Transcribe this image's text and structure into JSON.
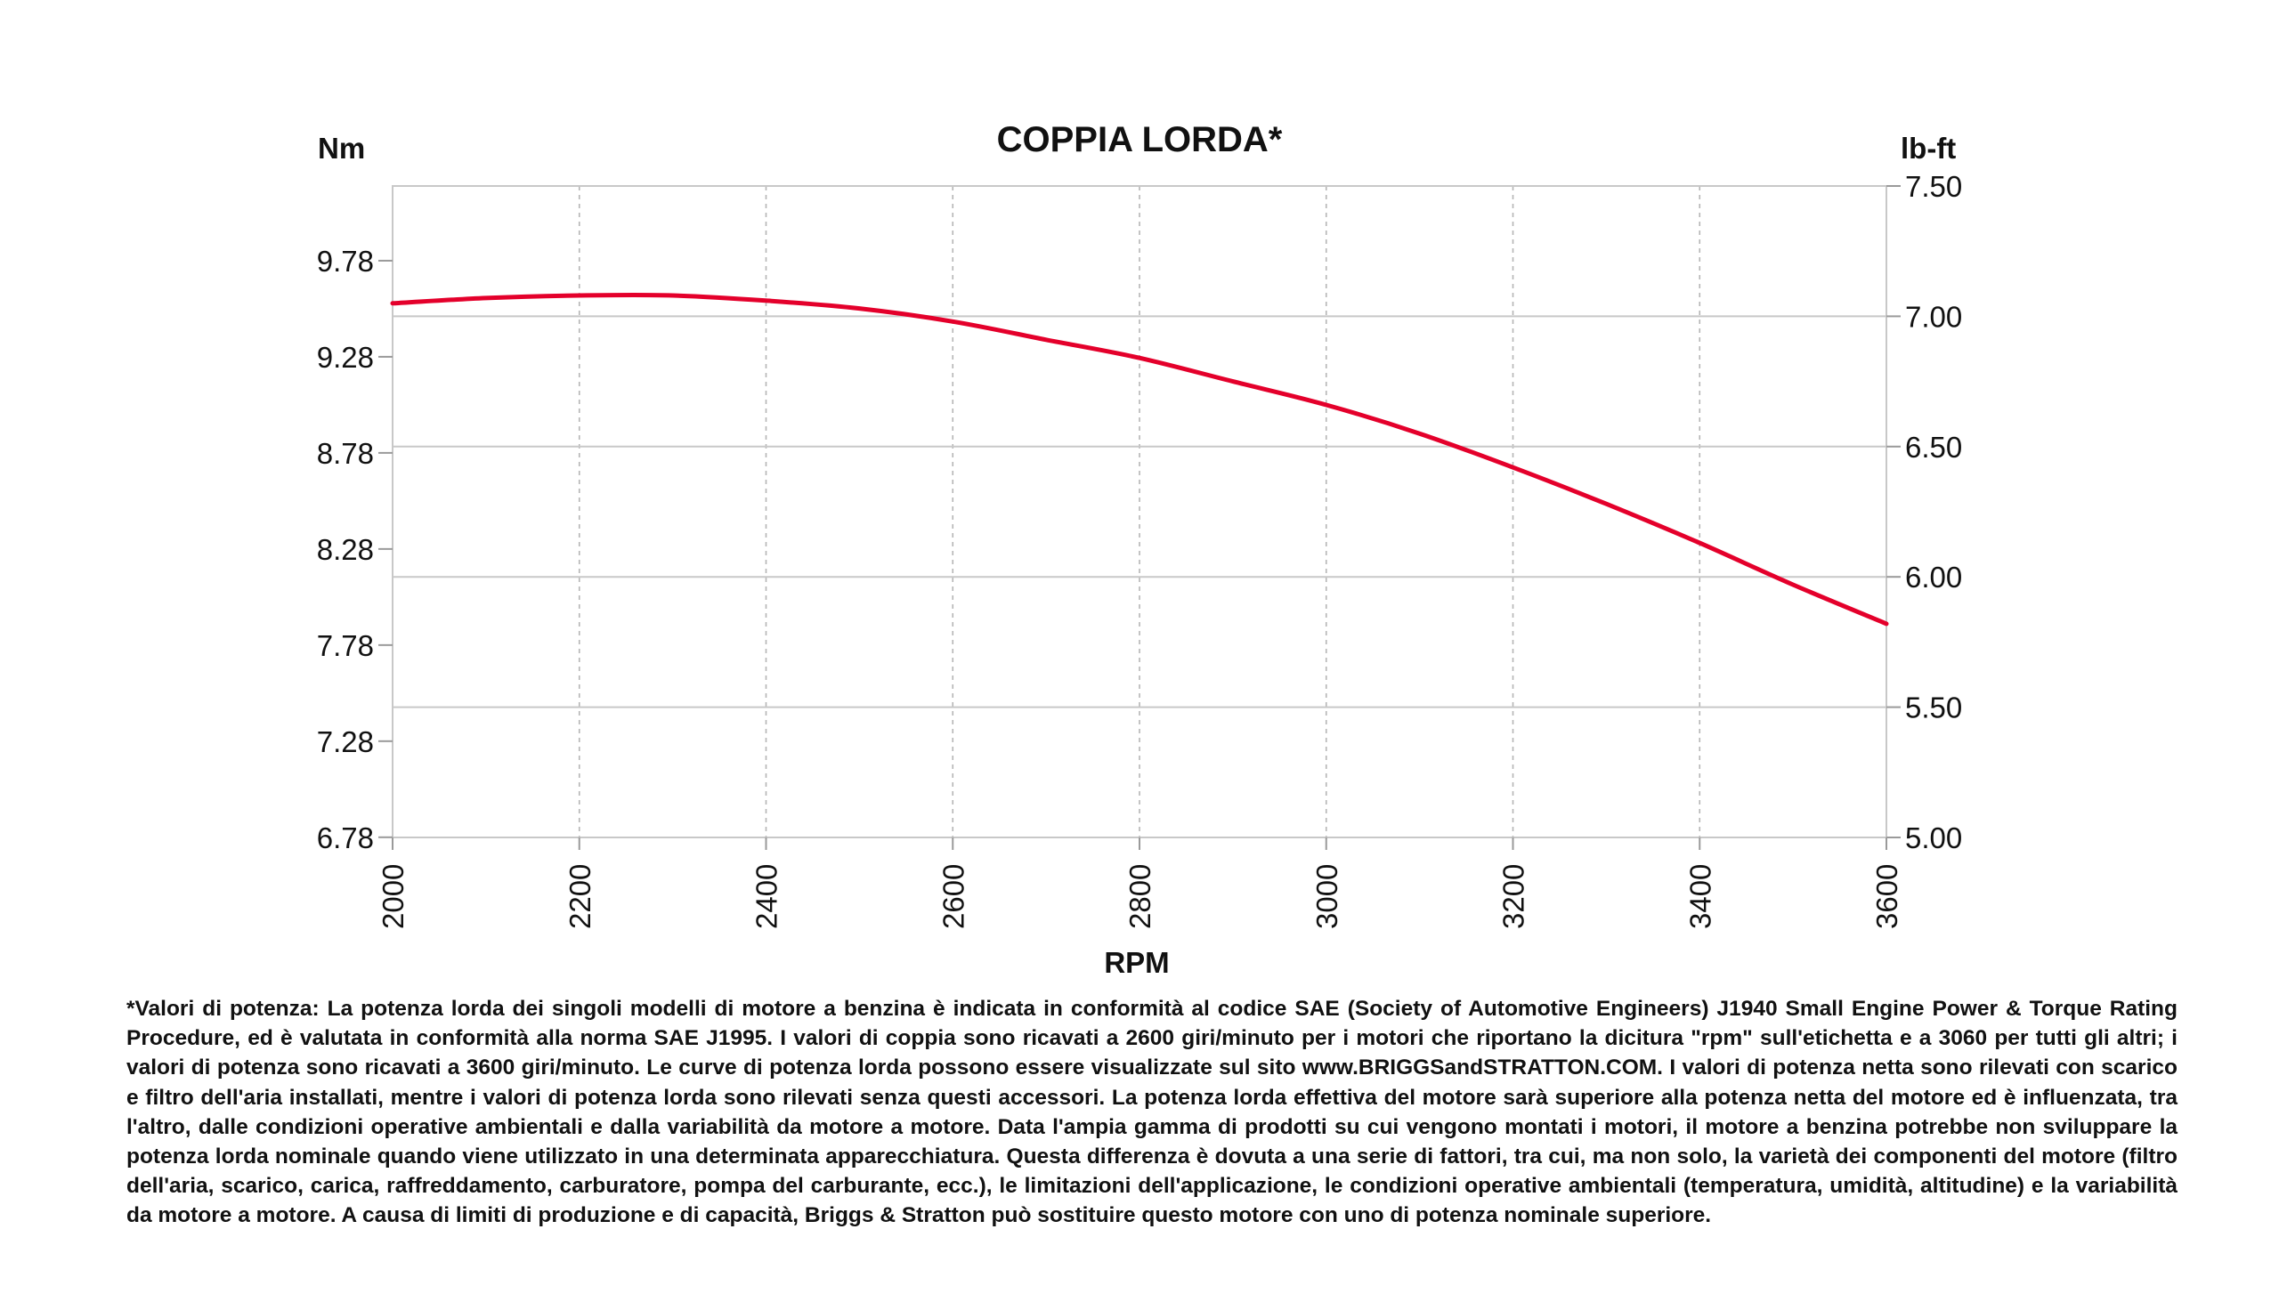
{
  "chart_data": {
    "type": "line",
    "title": "COPPIA LORDA*",
    "xlabel": "RPM",
    "ylabel_left": "Nm",
    "ylabel_right": "lb-ft",
    "x_ticks": [
      2000,
      2200,
      2400,
      2600,
      2800,
      3000,
      3200,
      3400,
      3600
    ],
    "x_tick_labels": [
      "2000",
      "2200",
      "2400",
      "2600",
      "2800",
      "3000",
      "3200",
      "3400",
      "3600"
    ],
    "xlim": [
      2000,
      3600
    ],
    "left_ticks": [
      6.78,
      7.28,
      7.78,
      8.28,
      8.78,
      9.28,
      9.78
    ],
    "left_tick_labels": [
      "6.78",
      "7.28",
      "7.78",
      "8.28",
      "8.78",
      "9.28",
      "9.78"
    ],
    "right_ticks": [
      5.0,
      5.5,
      6.0,
      6.5,
      7.0,
      7.5
    ],
    "right_tick_labels": [
      "5.00",
      "5.50",
      "6.00",
      "6.50",
      "7.00",
      "7.50"
    ],
    "ylim_right": [
      5.0,
      7.5
    ],
    "grid": "vertical dashed at x ticks; horizontal solid at right-axis ticks",
    "legend": "none",
    "series": [
      {
        "color": "#e4002b",
        "x": [
          2000,
          2100,
          2200,
          2300,
          2400,
          2500,
          2600,
          2700,
          2800,
          2900,
          3000,
          3100,
          3200,
          3300,
          3400,
          3500,
          3600
        ],
        "y": [
          7.05,
          7.07,
          7.08,
          7.08,
          7.06,
          7.03,
          6.98,
          6.91,
          6.84,
          6.75,
          6.66,
          6.55,
          6.42,
          6.28,
          6.13,
          5.97,
          5.82
        ]
      }
    ]
  },
  "footnote": "*Valori di potenza: La potenza lorda dei singoli modelli di motore a benzina è indicata in conformità al codice SAE (Society of Automotive Engineers) J1940 Small Engine Power & Torque Rating Procedure, ed è valutata in conformità alla norma SAE J1995. I valori di coppia sono ricavati a 2600 giri/minuto per i motori che riportano la dicitura \"rpm\" sull'etichetta e a 3060 per tutti gli altri; i valori di potenza sono ricavati a 3600 giri/minuto. Le curve di potenza lorda possono essere visualizzate sul sito www.BRIGGSandSTRATTON.COM. I valori di potenza netta sono rilevati con scarico e filtro dell'aria installati, mentre i valori di potenza lorda sono rilevati senza questi accessori. La potenza lorda effettiva del motore sarà superiore alla potenza netta del motore ed è influenzata, tra l'altro, dalle condizioni operative ambientali e dalla variabilità da motore a motore. Data l'ampia gamma di prodotti su cui vengono montati i motori, il motore a benzina potrebbe non sviluppare la potenza lorda nominale quando viene utilizzato in una determinata apparecchiatura. Questa differenza è dovuta a una serie di fattori, tra cui, ma non solo, la varietà dei componenti del motore (filtro dell'aria, scarico, carica, raffreddamento, carburatore, pompa del carburante, ecc.), le limitazioni dell'applicazione, le condizioni operative ambientali (temperatura, umidità, altitudine) e la variabilità da motore a motore. A causa di limiti di produzione e di capacità, Briggs & Stratton può sostituire questo motore con uno di potenza nominale superiore."
}
